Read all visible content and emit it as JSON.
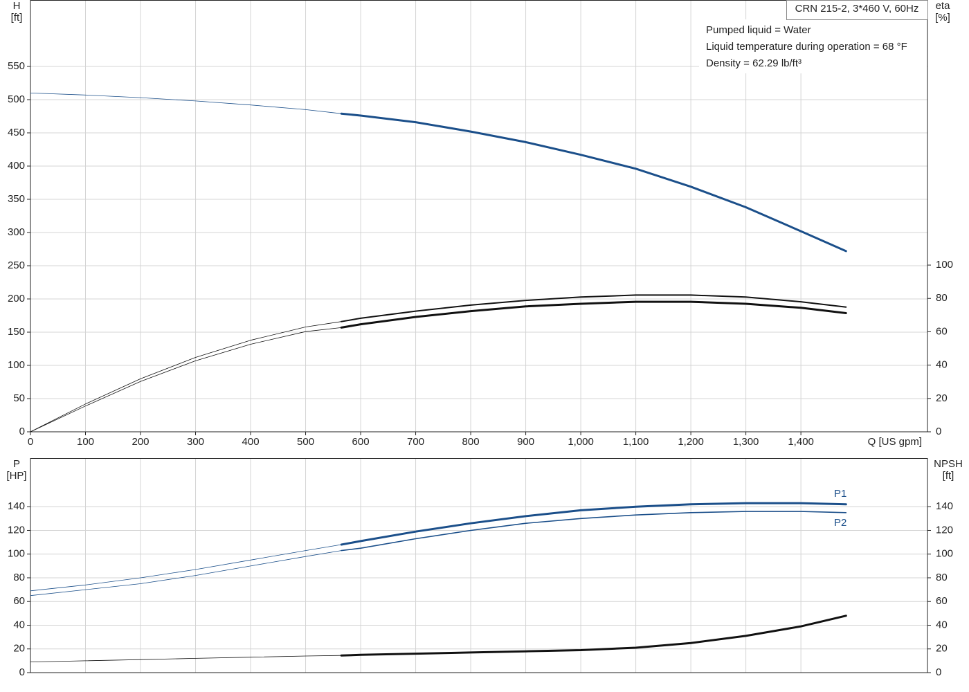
{
  "chart_data": [
    {
      "type": "line",
      "title": "CRN 215-2, 3*460 V, 60Hz",
      "notes": [
        "Pumped liquid = Water",
        "Liquid temperature during operation = 68 °F",
        "Density = 62.29 lb/ft³"
      ],
      "ylabel": "H",
      "yunit": "[ft]",
      "y2label": "eta",
      "y2unit": "[%]",
      "xlabel": "Q [US gpm]",
      "x": [
        0,
        100,
        200,
        300,
        400,
        500,
        565,
        600,
        700,
        800,
        900,
        1000,
        1100,
        1200,
        1300,
        1400,
        1482
      ],
      "xlim": [
        0,
        1630
      ],
      "xticks": [
        0,
        100,
        200,
        300,
        400,
        500,
        600,
        700,
        800,
        900,
        {
          "value": 1000,
          "label": "1,000"
        },
        {
          "value": 1100,
          "label": "1,100"
        },
        {
          "value": 1200,
          "label": "1,200"
        },
        {
          "value": 1300,
          "label": "1,300"
        },
        {
          "value": 1400,
          "label": "1,400"
        }
      ],
      "ylim": [
        0,
        650
      ],
      "yticks": [
        0,
        50,
        100,
        150,
        200,
        250,
        300,
        350,
        400,
        450,
        500,
        550
      ],
      "y2lim": [
        0,
        259
      ],
      "y2ticks": [
        0,
        20,
        40,
        60,
        80,
        100
      ],
      "grid": true,
      "series": [
        {
          "color": "#1b4f8a",
          "linewidth": 0.8,
          "values": [
            510,
            507,
            503,
            498,
            492,
            485,
            479,
            null,
            null,
            null,
            null,
            null,
            null,
            null,
            null,
            null,
            null
          ]
        },
        {
          "color": "#1b4f8a",
          "linewidth": 3,
          "values": [
            null,
            null,
            null,
            null,
            null,
            null,
            479,
            476,
            466,
            452,
            436,
            417,
            396,
            369,
            338,
            302,
            272
          ]
        },
        {
          "color": "#111111",
          "linewidth": 0.8,
          "axis": "y2",
          "values": [
            0,
            16.7,
            31.8,
            44.6,
            54.9,
            62.9,
            66.1,
            null,
            null,
            null,
            null,
            null,
            null,
            null,
            null,
            null,
            null
          ]
        },
        {
          "color": "#111111",
          "linewidth": 2,
          "axis": "y2",
          "values": [
            null,
            null,
            null,
            null,
            null,
            null,
            66.1,
            68.1,
            72.4,
            76.0,
            78.8,
            80.8,
            82.0,
            82.0,
            80.8,
            78.0,
            74.8
          ]
        },
        {
          "color": "#111111",
          "linewidth": 0.8,
          "axis": "y2",
          "values": [
            0,
            15.5,
            30.2,
            42.6,
            52.5,
            60.1,
            62.5,
            null,
            null,
            null,
            null,
            null,
            null,
            null,
            null,
            null,
            null
          ]
        },
        {
          "color": "#111111",
          "linewidth": 3,
          "axis": "y2",
          "values": [
            null,
            null,
            null,
            null,
            null,
            null,
            62.5,
            64.5,
            68.9,
            72.4,
            75.2,
            76.8,
            78.0,
            78.0,
            76.8,
            74.4,
            71.2
          ]
        }
      ]
    },
    {
      "type": "line",
      "ylabel": "P",
      "yunit": "[HP]",
      "y2label": "NPSH",
      "y2unit": "[ft]",
      "x": [
        0,
        100,
        200,
        300,
        400,
        500,
        565,
        600,
        700,
        800,
        900,
        1000,
        1100,
        1200,
        1300,
        1400,
        1482
      ],
      "xlim": [
        0,
        1630
      ],
      "xticks": [
        0,
        100,
        200,
        300,
        400,
        500,
        600,
        700,
        800,
        900,
        1000,
        1100,
        1200,
        1300,
        1400
      ],
      "ylim": [
        0,
        181
      ],
      "yticks": [
        0,
        20,
        40,
        60,
        80,
        100,
        120,
        140
      ],
      "y2lim": [
        0,
        181
      ],
      "y2ticks": [
        0,
        20,
        40,
        60,
        80,
        100,
        120,
        140
      ],
      "grid": true,
      "series": [
        {
          "color": "#1b4f8a",
          "linewidth": 0.8,
          "values": [
            69,
            74,
            80,
            87,
            95,
            103,
            108,
            null,
            null,
            null,
            null,
            null,
            null,
            null,
            null,
            null,
            null
          ]
        },
        {
          "name": "P1",
          "color": "#1b4f8a",
          "linewidth": 3,
          "values": [
            null,
            null,
            null,
            null,
            null,
            null,
            108,
            111,
            119,
            126,
            132,
            137,
            140,
            142,
            143,
            143,
            142
          ]
        },
        {
          "color": "#1b4f8a",
          "linewidth": 0.8,
          "values": [
            65,
            70,
            75,
            82,
            90,
            98,
            103,
            null,
            null,
            null,
            null,
            null,
            null,
            null,
            null,
            null,
            null
          ]
        },
        {
          "name": "P2",
          "color": "#1b4f8a",
          "linewidth": 1.6,
          "values": [
            null,
            null,
            null,
            null,
            null,
            null,
            103,
            105,
            113,
            120,
            126,
            130,
            133,
            135,
            136,
            136,
            135
          ]
        },
        {
          "color": "#111111",
          "linewidth": 0.8,
          "axis": "y2",
          "values": [
            9,
            10,
            11,
            12,
            13,
            14,
            14.5,
            null,
            null,
            null,
            null,
            null,
            null,
            null,
            null,
            null,
            null
          ]
        },
        {
          "color": "#111111",
          "linewidth": 3,
          "axis": "y2",
          "values": [
            null,
            null,
            null,
            null,
            null,
            null,
            14.5,
            15,
            16,
            17,
            18,
            19,
            21,
            25,
            31,
            39,
            48
          ]
        }
      ]
    }
  ]
}
